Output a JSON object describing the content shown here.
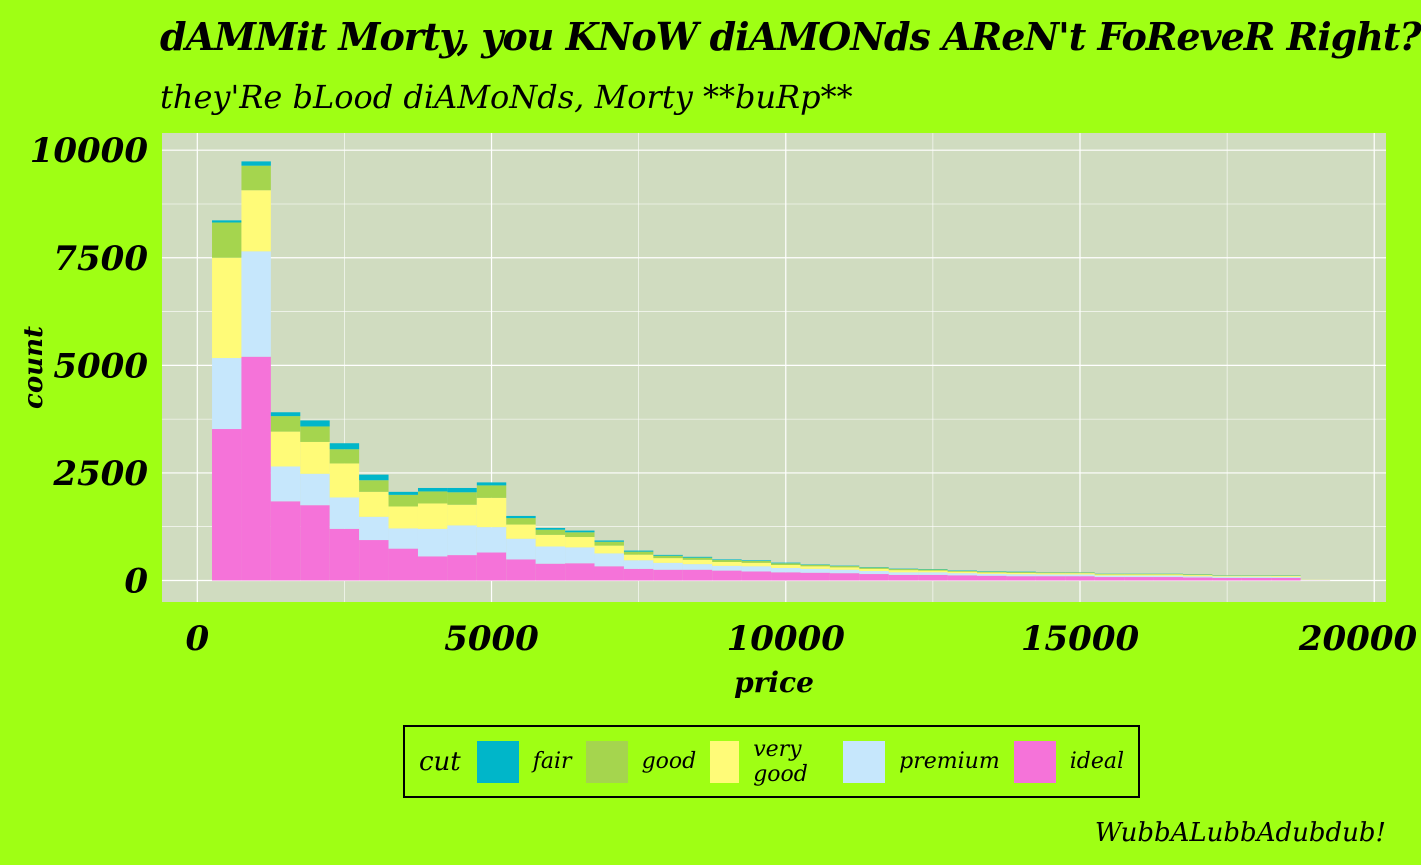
{
  "chart_data": {
    "type": "bar",
    "stacked": true,
    "title": "dAMMit Morty, you KNoW diAMONds AReN't FoReveR Right?",
    "subtitle": "they'Re bLood diAMoNds, Morty **buRp**",
    "caption": "WubbALubbAdubdub!",
    "xlabel": "price",
    "ylabel": "count",
    "xlim": [
      -600,
      20200
    ],
    "ylim": [
      -500,
      10400
    ],
    "x_ticks": [
      0,
      5000,
      10000,
      15000,
      20000
    ],
    "x_tick_labels": [
      "0",
      "5000",
      "10000",
      "15000",
      "20000"
    ],
    "y_ticks": [
      0,
      2500,
      5000,
      7500,
      10000
    ],
    "y_tick_labels": [
      "0",
      "2500",
      "5000",
      "7500",
      "10000"
    ],
    "grid": true,
    "legend_position": "bottom",
    "legend_title": "cut",
    "bin_width": 500,
    "bin_starts": [
      250,
      750,
      1250,
      1750,
      2250,
      2750,
      3250,
      3750,
      4250,
      4750,
      5250,
      5750,
      6250,
      6750,
      7250,
      7750,
      8250,
      8750,
      9250,
      9750,
      10250,
      10750,
      11250,
      11750,
      12250,
      12750,
      13250,
      13750,
      14250,
      14750,
      15250,
      15750,
      16250,
      16750,
      17250,
      17750,
      18250,
      18750
    ],
    "series": [
      {
        "name": "ideal",
        "color": "#f573d9",
        "values": [
          3520,
          5200,
          1840,
          1750,
          1200,
          940,
          740,
          560,
          590,
          650,
          490,
          390,
          400,
          330,
          270,
          250,
          250,
          230,
          210,
          190,
          180,
          170,
          150,
          130,
          130,
          120,
          110,
          100,
          100,
          100,
          80,
          80,
          80,
          70,
          60,
          60,
          60,
          5
        ]
      },
      {
        "name": "premium",
        "color": "#c6e7fc",
        "values": [
          1650,
          2450,
          810,
          730,
          730,
          540,
          470,
          640,
          690,
          590,
          480,
          400,
          370,
          300,
          200,
          160,
          130,
          110,
          120,
          100,
          90,
          80,
          70,
          60,
          60,
          50,
          45,
          45,
          40,
          40,
          35,
          35,
          35,
          30,
          30,
          30,
          25,
          5
        ]
      },
      {
        "name": "very good",
        "color": "#fffb78",
        "values": [
          2330,
          1420,
          810,
          740,
          790,
          580,
          510,
          590,
          480,
          680,
          330,
          270,
          240,
          180,
          130,
          110,
          100,
          90,
          80,
          70,
          60,
          55,
          50,
          50,
          40,
          35,
          30,
          30,
          30,
          30,
          25,
          25,
          25,
          25,
          20,
          20,
          20,
          5
        ]
      },
      {
        "name": "good",
        "color": "#a5d54e",
        "values": [
          820,
          570,
          360,
          360,
          330,
          270,
          270,
          280,
          290,
          290,
          150,
          120,
          110,
          90,
          70,
          55,
          50,
          45,
          45,
          40,
          35,
          30,
          30,
          25,
          25,
          20,
          20,
          20,
          15,
          15,
          15,
          15,
          15,
          15,
          10,
          10,
          10,
          0
        ]
      },
      {
        "name": "fair",
        "color": "#00b6c9",
        "values": [
          50,
          100,
          90,
          140,
          140,
          130,
          70,
          80,
          100,
          70,
          50,
          40,
          40,
          30,
          25,
          20,
          20,
          15,
          15,
          15,
          10,
          10,
          10,
          10,
          10,
          10,
          10,
          10,
          5,
          5,
          5,
          5,
          5,
          5,
          5,
          5,
          5,
          0
        ]
      }
    ],
    "legend_order": [
      "fair",
      "good",
      "very good",
      "premium",
      "ideal"
    ]
  },
  "colors": {
    "background": "#9fff14",
    "panel": "#d0dcc0",
    "grid": "#ffffff"
  }
}
